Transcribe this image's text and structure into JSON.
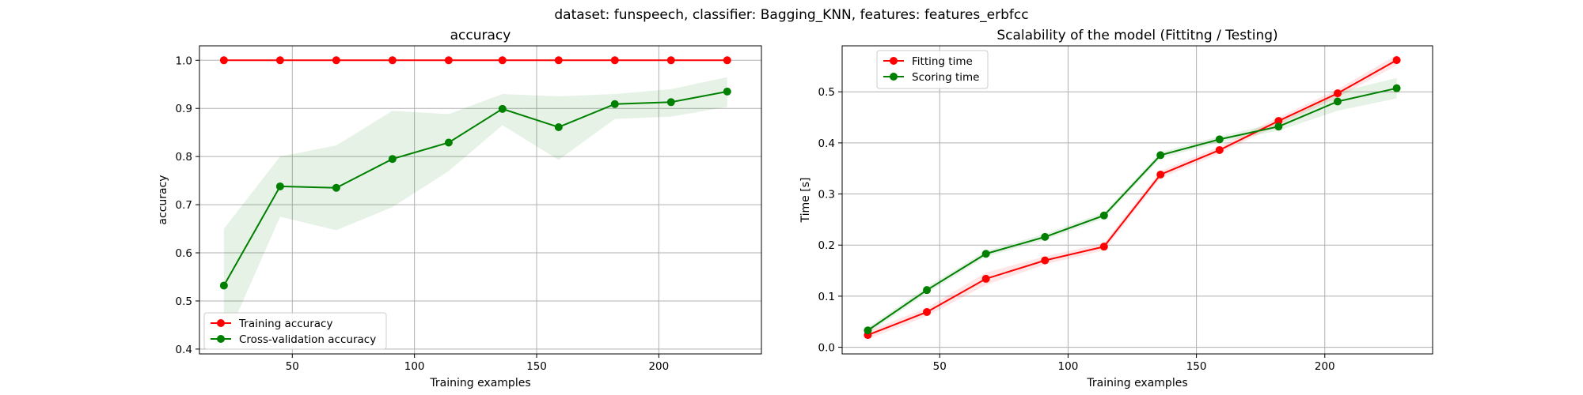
{
  "suptitle": "dataset: funspeech, classifier: Bagging_KNN, features: features_erbfcc",
  "colors": {
    "red": "#ff0000",
    "green": "#008000"
  },
  "chart_data": [
    {
      "type": "line",
      "title": "accuracy",
      "xlabel": "Training examples",
      "ylabel": "accuracy",
      "xlim": [
        12,
        242
      ],
      "ylim": [
        0.39,
        1.03
      ],
      "xticks": [
        50,
        100,
        150,
        200
      ],
      "yticks": [
        0.4,
        0.5,
        0.6,
        0.7,
        0.8,
        0.9,
        1.0
      ],
      "ytick_labels": [
        "0.4",
        "0.5",
        "0.6",
        "0.7",
        "0.8",
        "0.9",
        "1.0"
      ],
      "grid": true,
      "legend": "lower-left",
      "x": [
        22,
        45,
        68,
        91,
        114,
        136,
        159,
        182,
        205,
        228
      ],
      "series": [
        {
          "name": "Training accuracy",
          "color": "#ff0000",
          "values": [
            1.0,
            1.0,
            1.0,
            1.0,
            1.0,
            1.0,
            1.0,
            1.0,
            1.0,
            1.0
          ],
          "lower": [
            1.0,
            1.0,
            1.0,
            1.0,
            1.0,
            1.0,
            1.0,
            1.0,
            1.0,
            1.0
          ],
          "upper": [
            1.0,
            1.0,
            1.0,
            1.0,
            1.0,
            1.0,
            1.0,
            1.0,
            1.0,
            1.0
          ]
        },
        {
          "name": "Cross-validation accuracy",
          "color": "#008000",
          "values": [
            0.532,
            0.738,
            0.735,
            0.795,
            0.829,
            0.899,
            0.861,
            0.909,
            0.913,
            0.935
          ],
          "lower": [
            0.41,
            0.675,
            0.647,
            0.695,
            0.77,
            0.865,
            0.793,
            0.878,
            0.883,
            0.903
          ],
          "upper": [
            0.65,
            0.8,
            0.823,
            0.895,
            0.888,
            0.93,
            0.925,
            0.93,
            0.94,
            0.965
          ]
        }
      ]
    },
    {
      "type": "line",
      "title": "Scalability of the model (Fittitng / Testing)",
      "xlabel": "Training examples",
      "ylabel": "Time [s]",
      "xlim": [
        12,
        242
      ],
      "ylim": [
        -0.013,
        0.59
      ],
      "xticks": [
        50,
        100,
        150,
        200
      ],
      "yticks": [
        0.0,
        0.1,
        0.2,
        0.3,
        0.4,
        0.5
      ],
      "ytick_labels": [
        "0.0",
        "0.1",
        "0.2",
        "0.3",
        "0.4",
        "0.5"
      ],
      "grid": true,
      "legend": "upper-left",
      "x": [
        22,
        45,
        68,
        91,
        114,
        136,
        159,
        182,
        205,
        228
      ],
      "series": [
        {
          "name": "Fitting time",
          "color": "#ff0000",
          "values": [
            0.024,
            0.069,
            0.134,
            0.17,
            0.197,
            0.338,
            0.386,
            0.443,
            0.497,
            0.562
          ],
          "lower": [
            0.016,
            0.061,
            0.122,
            0.162,
            0.19,
            0.331,
            0.379,
            0.436,
            0.489,
            0.552
          ],
          "upper": [
            0.032,
            0.077,
            0.146,
            0.178,
            0.204,
            0.345,
            0.393,
            0.45,
            0.505,
            0.572
          ]
        },
        {
          "name": "Scoring time",
          "color": "#008000",
          "values": [
            0.033,
            0.112,
            0.183,
            0.216,
            0.258,
            0.376,
            0.407,
            0.432,
            0.481,
            0.507
          ],
          "lower": [
            0.027,
            0.106,
            0.177,
            0.21,
            0.252,
            0.37,
            0.401,
            0.424,
            0.463,
            0.487
          ],
          "upper": [
            0.039,
            0.118,
            0.189,
            0.222,
            0.264,
            0.382,
            0.413,
            0.44,
            0.499,
            0.527
          ]
        }
      ]
    }
  ]
}
